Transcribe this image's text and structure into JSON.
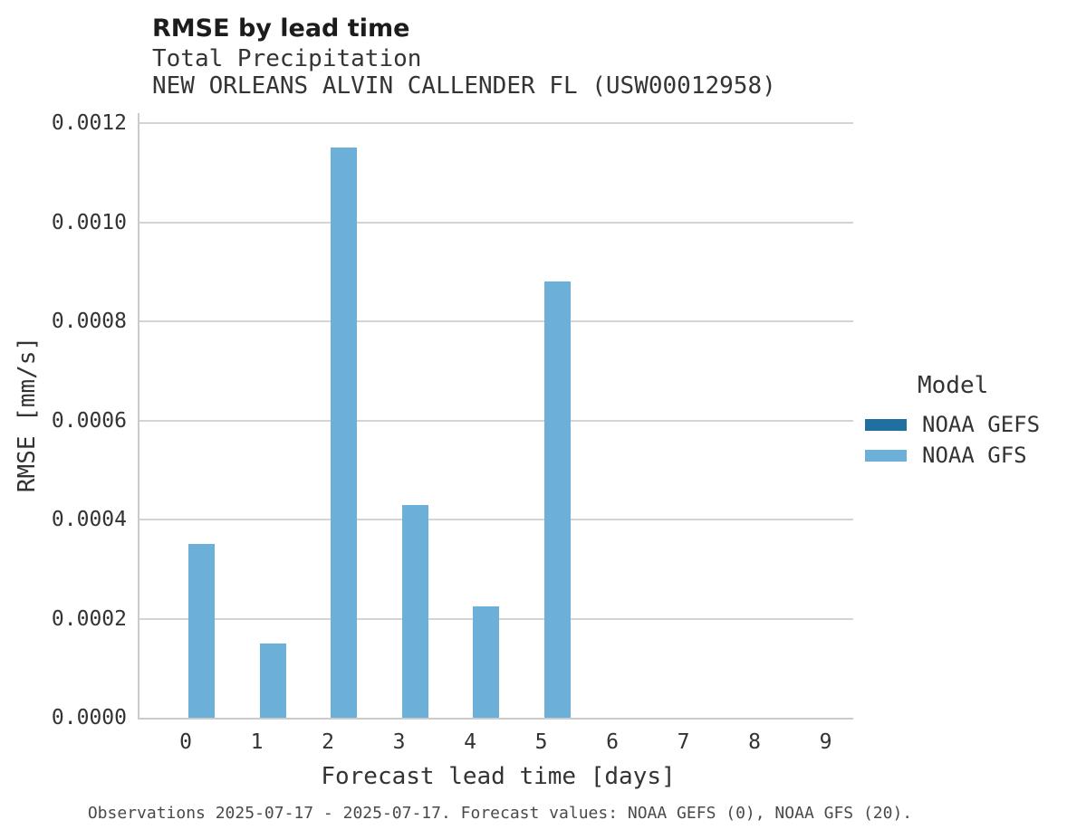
{
  "header": {
    "title": "RMSE by lead time",
    "subtitle1": "Total Precipitation",
    "subtitle2": "NEW ORLEANS ALVIN CALLENDER FL (USW00012958)"
  },
  "chart_data": {
    "type": "bar",
    "title": "RMSE by lead time",
    "subtitle": "Total Precipitation — NEW ORLEANS ALVIN CALLENDER FL (USW00012958)",
    "xlabel": "Forecast lead time [days]",
    "ylabel": "RMSE [mm/s]",
    "categories": [
      "0",
      "1",
      "2",
      "3",
      "4",
      "5",
      "6",
      "7",
      "8",
      "9"
    ],
    "series": [
      {
        "name": "NOAA GEFS",
        "color": "#1f6f9f",
        "values": [
          null,
          null,
          null,
          null,
          null,
          null,
          null,
          null,
          null,
          null
        ]
      },
      {
        "name": "NOAA GFS",
        "color": "#6cb0d9",
        "values": [
          0.00035,
          0.00015,
          0.00115,
          0.00043,
          0.000225,
          0.00088,
          null,
          null,
          null,
          null
        ]
      }
    ],
    "ylim": [
      0,
      0.0012
    ],
    "yticks": [
      0,
      0.0002,
      0.0004,
      0.0006,
      0.0008,
      0.001,
      0.0012
    ],
    "ytick_labels": [
      "0.0000",
      "0.0002",
      "0.0004",
      "0.0006",
      "0.0008",
      "0.0010",
      "0.0012"
    ],
    "grid": true,
    "legend_title": "Model",
    "legend_position": "right"
  },
  "caption": "Observations 2025-07-17 - 2025-07-17. Forecast values: NOAA GEFS (0), NOAA GFS (20)."
}
